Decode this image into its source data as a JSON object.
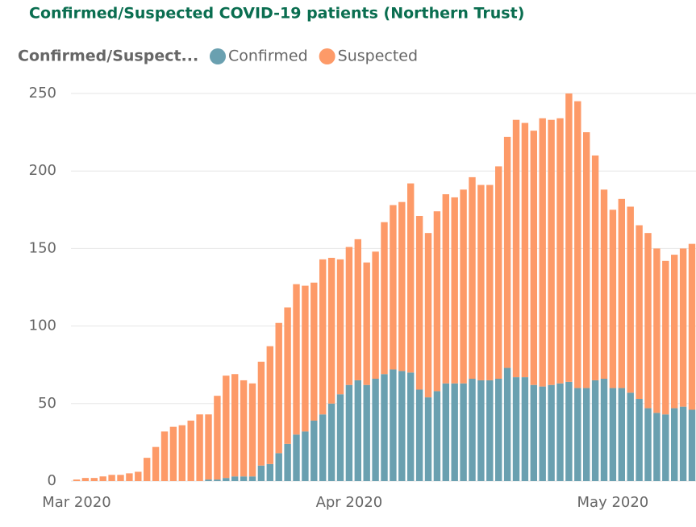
{
  "chart_data": {
    "type": "stacked-bar",
    "title": "Confirmed/Suspected COVID-19 patients (Northern Trust)",
    "legend_title": "Confirmed/Suspect...",
    "categories": [
      null,
      null,
      null,
      null,
      null,
      null,
      null,
      null,
      null,
      null,
      null,
      null,
      null,
      null,
      null,
      null,
      null,
      null,
      null,
      null,
      null,
      null,
      null,
      null,
      null,
      null,
      null,
      null,
      null,
      null,
      null,
      null,
      null,
      null,
      null,
      null,
      null,
      null,
      null,
      null,
      null,
      null,
      null,
      null,
      null,
      null,
      null,
      null,
      null,
      null,
      null,
      null,
      null,
      null,
      null,
      null,
      null,
      null,
      null,
      null,
      null,
      null,
      null,
      null,
      null,
      null,
      null,
      null,
      null,
      null,
      null
    ],
    "xticks": [
      {
        "value": 0,
        "label": "Mar 2020"
      },
      {
        "value": 31,
        "label": "Apr 2020"
      },
      {
        "value": 61,
        "label": "May 2020"
      }
    ],
    "series": [
      {
        "name": "Confirmed",
        "color": "#6aa0b0",
        "values": [
          0,
          0,
          0,
          0,
          0,
          0,
          0,
          0,
          0,
          0,
          0,
          0,
          0,
          0,
          0,
          1,
          1,
          2,
          3,
          3,
          3,
          10,
          11,
          18,
          24,
          30,
          32,
          39,
          43,
          50,
          56,
          62,
          65,
          62,
          66,
          69,
          72,
          71,
          70,
          59,
          54,
          58,
          63,
          63,
          63,
          66,
          65,
          65,
          66,
          73,
          67,
          67,
          62,
          61,
          62,
          63,
          64,
          60,
          60,
          65,
          66,
          60,
          60,
          57,
          53,
          47,
          44,
          43,
          47,
          48,
          46
        ]
      },
      {
        "name": "Suspected",
        "color": "#fd9a68",
        "values": [
          1,
          2,
          2,
          3,
          4,
          4,
          5,
          6,
          15,
          22,
          32,
          35,
          36,
          39,
          43,
          42,
          54,
          66,
          66,
          62,
          60,
          67,
          76,
          84,
          88,
          97,
          94,
          89,
          100,
          94,
          87,
          89,
          91,
          79,
          82,
          98,
          106,
          109,
          122,
          112,
          106,
          116,
          122,
          120,
          125,
          130,
          126,
          126,
          137,
          149,
          166,
          164,
          164,
          173,
          171,
          171,
          186,
          185,
          165,
          145,
          122,
          115,
          122,
          120,
          112,
          113,
          106,
          99,
          99,
          102,
          107
        ]
      }
    ],
    "ylim": [
      0,
      250
    ],
    "yticks": [
      0,
      50,
      100,
      150,
      200,
      250
    ],
    "grid": true
  }
}
